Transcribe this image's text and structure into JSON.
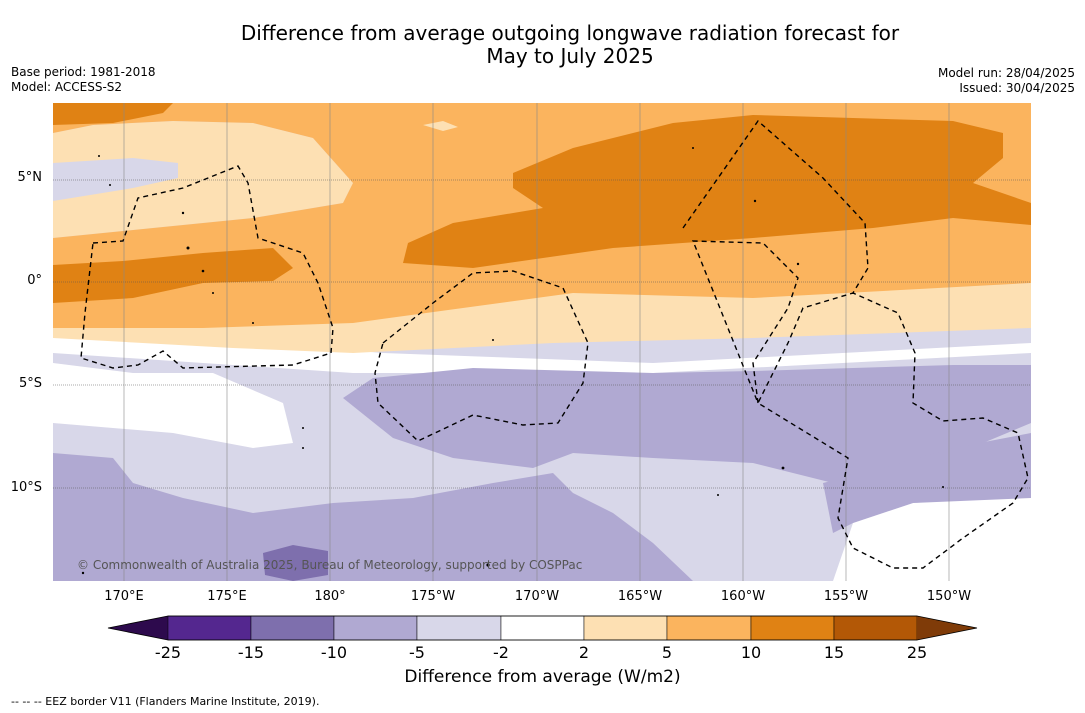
{
  "title_line1": "Difference from average outgoing longwave radiation forecast for",
  "title_line2": "May to July 2025",
  "base_period": "Base period: 1981-2018",
  "model": "Model: ACCESS-S2",
  "model_run": "Model run: 28/04/2025",
  "issued": "Issued: 30/04/2025",
  "copyright": "© Commonwealth of Australia 2025, Bureau of Meteorology, supported by COSPPac",
  "footnote": "--  --  -- EEZ border V11 (Flanders Marine Institute, 2019).",
  "longitude_labels": [
    "170°E",
    "175°E",
    "180°",
    "175°W",
    "170°W",
    "165°W",
    "160°W",
    "155°W",
    "150°W"
  ],
  "latitude_labels": [
    "5°N",
    "0°",
    "5°S",
    "10°S"
  ],
  "colorbar": {
    "title": "Difference from average (W/m2)",
    "ticks": [
      "-25",
      "-15",
      "-10",
      "-5",
      "-2",
      "2",
      "5",
      "10",
      "15",
      "25"
    ],
    "colors": [
      "#2d0a4d",
      "#54278f",
      "#7e6fad",
      "#b0a9d2",
      "#d8d7e9",
      "#ffffff",
      "#fde0b3",
      "#fbb45e",
      "#e08214",
      "#b35806",
      "#7f3b08"
    ]
  }
}
